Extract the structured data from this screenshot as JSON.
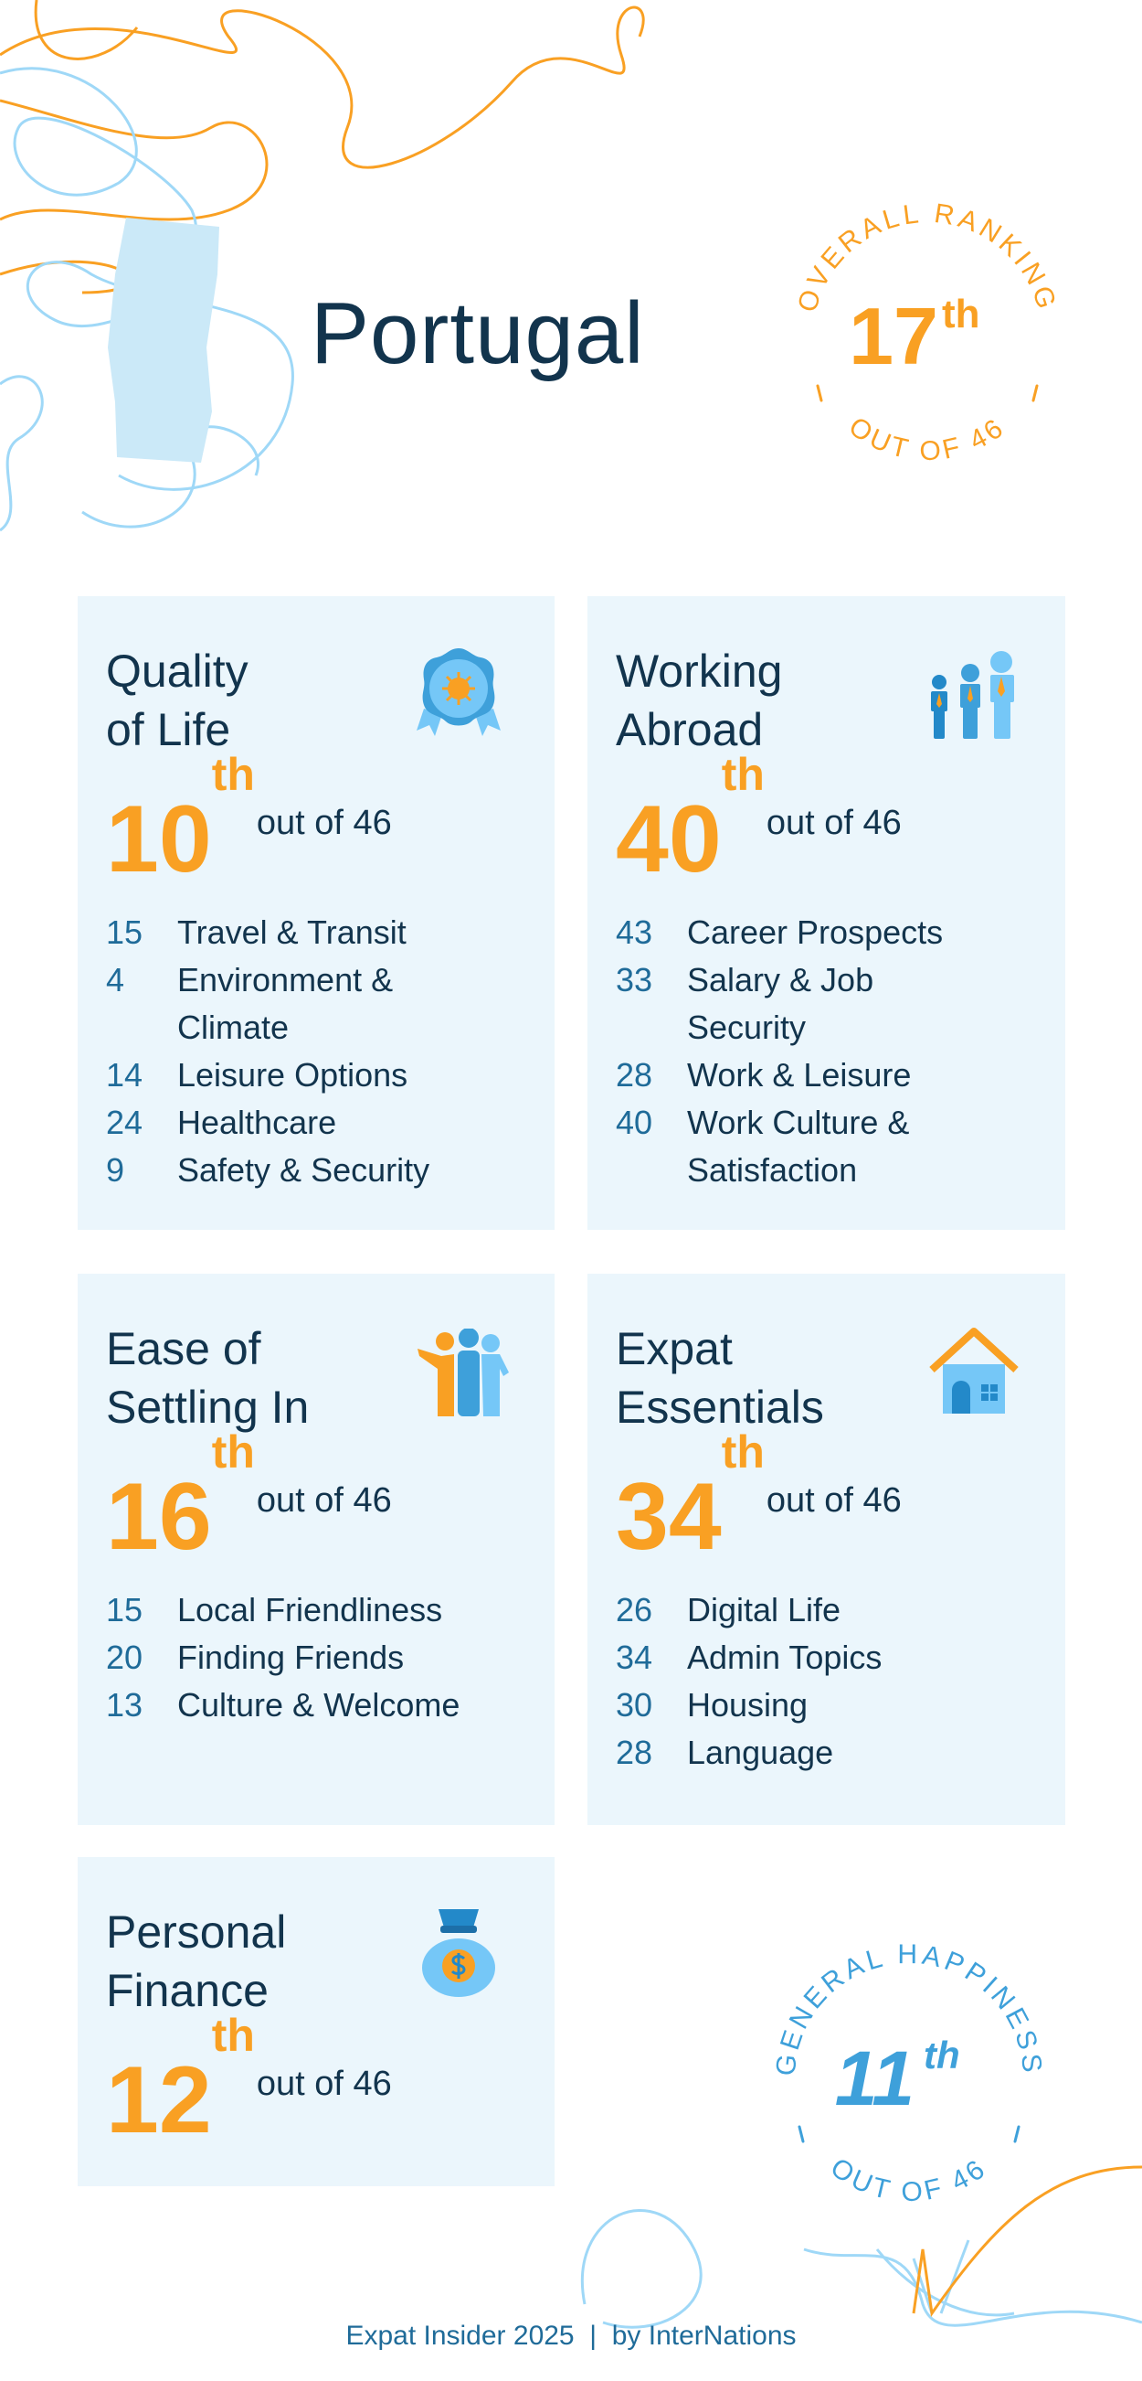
{
  "header": {
    "country": "Portugal",
    "overall": {
      "label": "OVERALL RANKING",
      "rank": "17",
      "suffix": "th",
      "out_of": "OUT OF 46"
    }
  },
  "cards": [
    {
      "title_line1": "Quality",
      "title_line2": "of Life",
      "rank": "10",
      "suffix": "th",
      "out_of": "out of 46",
      "items": [
        {
          "n": "15",
          "label": "Travel & Transit"
        },
        {
          "n": "4",
          "label": "Environment & Climate"
        },
        {
          "n": "14",
          "label": "Leisure Options"
        },
        {
          "n": "24",
          "label": "Healthcare"
        },
        {
          "n": "9",
          "label": "Safety & Security"
        }
      ]
    },
    {
      "title_line1": "Working",
      "title_line2": "Abroad",
      "rank": "40",
      "suffix": "th",
      "out_of": "out of 46",
      "items": [
        {
          "n": "43",
          "label": "Career Prospects"
        },
        {
          "n": "33",
          "label": "Salary & Job Security"
        },
        {
          "n": "28",
          "label": "Work & Leisure"
        },
        {
          "n": "40",
          "label": "Work Culture & Satisfaction"
        }
      ]
    },
    {
      "title_line1": "Ease of",
      "title_line2": "Settling In",
      "rank": "16",
      "suffix": "th",
      "out_of": "out of 46",
      "items": [
        {
          "n": "15",
          "label": "Local Friendliness"
        },
        {
          "n": "20",
          "label": "Finding Friends"
        },
        {
          "n": "13",
          "label": "Culture & Welcome"
        }
      ]
    },
    {
      "title_line1": "Expat",
      "title_line2": "Essentials",
      "rank": "34",
      "suffix": "th",
      "out_of": "out of 46",
      "items": [
        {
          "n": "26",
          "label": "Digital Life"
        },
        {
          "n": "34",
          "label": "Admin Topics"
        },
        {
          "n": "30",
          "label": "Housing"
        },
        {
          "n": "28",
          "label": "Language"
        }
      ]
    },
    {
      "title_line1": "Personal",
      "title_line2": "Finance",
      "rank": "12",
      "suffix": "th",
      "out_of": "out of 46",
      "items": []
    }
  ],
  "happiness": {
    "label": "GENERAL HAPPINESS",
    "rank": "11",
    "suffix": "th",
    "out_of": "OUT OF 46"
  },
  "footer": {
    "text": "Expat Insider 2025  |  by InterNations"
  },
  "colors": {
    "orange": "#f9a023",
    "navy": "#12344d",
    "blue": "#1f6b99",
    "card_bg": "#ebf6fc",
    "light_blue": "#75c7f7"
  }
}
